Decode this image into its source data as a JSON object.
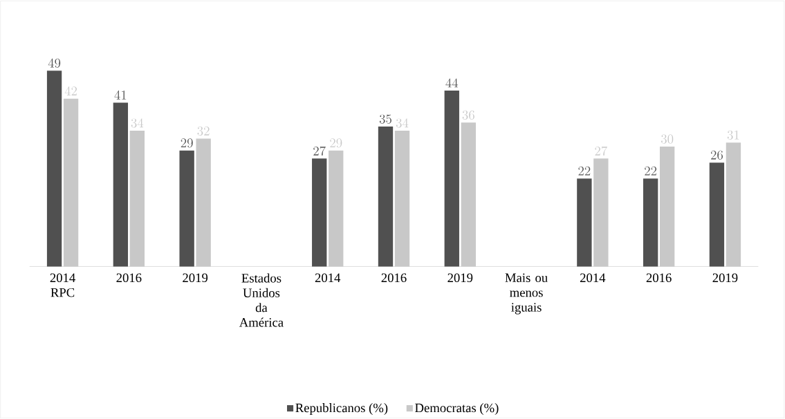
{
  "chart_data": {
    "type": "bar",
    "categories": [
      "2014 RPC",
      "2016",
      "2019",
      "Estados Unidos da América",
      "2014",
      "2016",
      "2019",
      "Mais ou menos iguais",
      "2014",
      "2016",
      "2019"
    ],
    "series": [
      {
        "name": "Republicanos (%)",
        "color": "#505050",
        "values": [
          49,
          41,
          29,
          null,
          27,
          35,
          44,
          null,
          22,
          22,
          26
        ]
      },
      {
        "name": "Democratas (%)",
        "color": "#c8c8c8",
        "values": [
          42,
          34,
          32,
          null,
          29,
          34,
          36,
          null,
          27,
          30,
          31
        ]
      }
    ],
    "data_labels": true,
    "legend": "bottom"
  }
}
